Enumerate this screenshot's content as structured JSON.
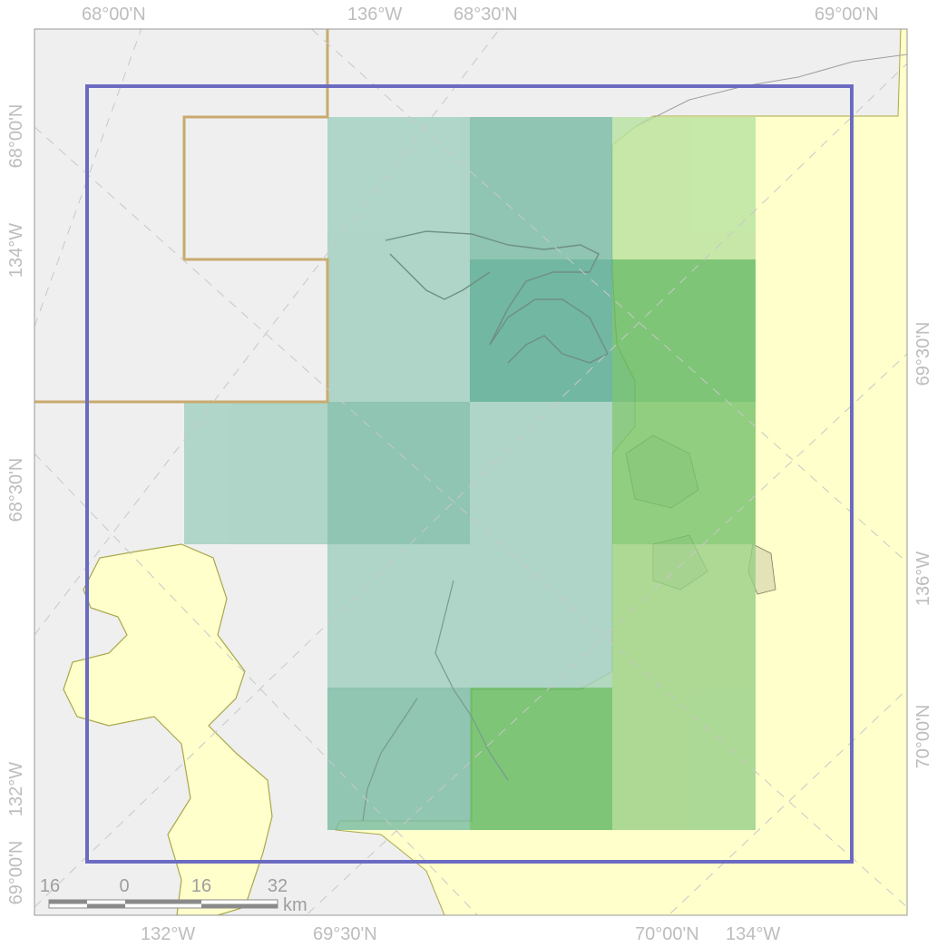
{
  "colors": {
    "background": "#efefef",
    "land": "#ffffcc",
    "land_stroke": "#a8a84a",
    "boundary": "#c8aa6e",
    "study_area": "#6b6bc2",
    "graticule": "#c8c8c8",
    "tile_teal": "#8fc4b0",
    "tile_green": "#7fc47a",
    "tile_lightgreen": "#c5e6a6",
    "tick_text": "#bdbdbd"
  },
  "graticule_labels": {
    "top": [
      "68°00'N",
      "136°W",
      "68°30'N",
      "69°00'N"
    ],
    "bottom": [
      "132°W",
      "69°30'N",
      "70°00'N",
      "134°W"
    ],
    "left": [
      "68°00'N",
      "134°W",
      "68°30'N",
      "132°W",
      "69°00'N"
    ],
    "right": [
      "69°30'N",
      "136°W",
      "70°00'N"
    ]
  },
  "scale_bar": {
    "labels": [
      "16",
      "0",
      "16",
      "32"
    ],
    "unit": "km"
  },
  "icons": {
    "graticule": "dashed-lines",
    "scale_bar": "alternating-segments"
  }
}
